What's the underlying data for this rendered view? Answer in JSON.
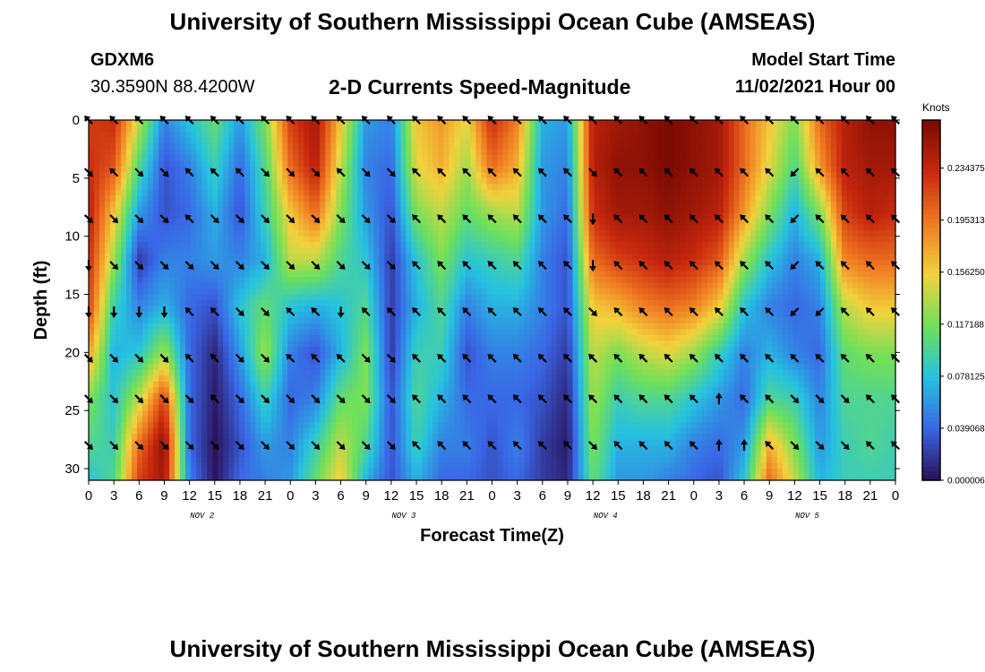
{
  "header": {
    "title": "University of Southern Mississippi Ocean Cube (AMSEAS)",
    "station": "GDXM6",
    "coords": "30.3590N  88.4200W",
    "chart_title": "2-D Currents Speed-Magnitude",
    "model_start_label": "Model Start Time",
    "model_start_value": "11/02/2021 Hour 00"
  },
  "footer": {
    "title": "University of Southern Mississippi Ocean Cube (AMSEAS)"
  },
  "colors": {
    "colormap": [
      "#2b0f57",
      "#3a66e6",
      "#26c2e0",
      "#6fe05a",
      "#f2d33d",
      "#f07a22",
      "#c8280e",
      "#7a0a03"
    ]
  },
  "chart_data": {
    "type": "heatmap",
    "title": "2-D Currents Speed-Magnitude",
    "xlabel": "Forecast Time(Z)",
    "ylabel": "Depth (ft)",
    "x_tick_labels": [
      "0",
      "3",
      "6",
      "9",
      "12",
      "15",
      "18",
      "21",
      "0",
      "3",
      "6",
      "9",
      "12",
      "15",
      "18",
      "21",
      "0",
      "3",
      "6",
      "9",
      "12",
      "15",
      "18",
      "21",
      "0",
      "3",
      "6",
      "9",
      "12",
      "15",
      "18",
      "21",
      "0"
    ],
    "x_hours": [
      0,
      96
    ],
    "day_labels": [
      {
        "label": "NOV 2",
        "hour": 13.5
      },
      {
        "label": "NOV 3",
        "hour": 37.5
      },
      {
        "label": "NOV 4",
        "hour": 61.5
      },
      {
        "label": "NOV 5",
        "hour": 85.5
      }
    ],
    "y_ticks": [
      0,
      5,
      10,
      15,
      20,
      25,
      30
    ],
    "ylim": [
      0,
      31
    ],
    "colorbar": {
      "unit": "Knots",
      "range": [
        0,
        0.27
      ],
      "ticks": [
        "0.000006",
        "0.039068",
        "0.078125",
        "0.117188",
        "0.156250",
        "0.195313",
        "0.234375"
      ],
      "tick_values": [
        0.0,
        0.039,
        0.078,
        0.117,
        0.156,
        0.195,
        0.234
      ]
    },
    "speed_grid": {
      "hours": [
        0,
        3,
        6,
        9,
        12,
        15,
        18,
        21,
        24,
        27,
        30,
        33,
        36,
        39,
        42,
        45,
        48,
        51,
        54,
        57,
        60,
        63,
        66,
        69,
        72,
        75,
        78,
        81,
        84,
        87,
        90,
        93,
        96
      ],
      "depths": [
        0,
        4,
        8,
        12,
        16,
        20,
        24,
        28,
        31
      ],
      "values": [
        [
          0.22,
          0.23,
          0.24,
          0.23,
          0.22,
          0.18,
          0.12,
          0.1,
          0.08
        ],
        [
          0.23,
          0.21,
          0.16,
          0.13,
          0.09,
          0.07,
          0.08,
          0.09,
          0.1
        ],
        [
          0.14,
          0.1,
          0.06,
          0.02,
          0.05,
          0.08,
          0.14,
          0.2,
          0.22
        ],
        [
          0.05,
          0.03,
          0.03,
          0.05,
          0.07,
          0.13,
          0.22,
          0.26,
          0.25
        ],
        [
          0.08,
          0.05,
          0.04,
          0.05,
          0.04,
          0.04,
          0.04,
          0.04,
          0.05
        ],
        [
          0.11,
          0.09,
          0.07,
          0.06,
          0.03,
          0.01,
          0.005,
          0.001,
          0.002
        ],
        [
          0.06,
          0.04,
          0.03,
          0.05,
          0.08,
          0.06,
          0.04,
          0.03,
          0.04
        ],
        [
          0.12,
          0.1,
          0.09,
          0.07,
          0.11,
          0.13,
          0.09,
          0.06,
          0.05
        ],
        [
          0.22,
          0.2,
          0.16,
          0.14,
          0.08,
          0.05,
          0.04,
          0.05,
          0.06
        ],
        [
          0.25,
          0.24,
          0.2,
          0.14,
          0.07,
          0.03,
          0.05,
          0.09,
          0.11
        ],
        [
          0.16,
          0.14,
          0.12,
          0.1,
          0.08,
          0.07,
          0.11,
          0.14,
          0.16
        ],
        [
          0.06,
          0.05,
          0.06,
          0.08,
          0.1,
          0.12,
          0.12,
          0.1,
          0.07
        ],
        [
          0.05,
          0.04,
          0.03,
          0.02,
          0.02,
          0.02,
          0.03,
          0.03,
          0.03
        ],
        [
          0.16,
          0.15,
          0.12,
          0.08,
          0.07,
          0.09,
          0.1,
          0.09,
          0.07
        ],
        [
          0.18,
          0.17,
          0.14,
          0.12,
          0.1,
          0.09,
          0.07,
          0.05,
          0.04
        ],
        [
          0.15,
          0.13,
          0.11,
          0.08,
          0.05,
          0.03,
          0.04,
          0.05,
          0.04
        ],
        [
          0.23,
          0.2,
          0.13,
          0.09,
          0.07,
          0.05,
          0.04,
          0.03,
          0.03
        ],
        [
          0.19,
          0.17,
          0.14,
          0.1,
          0.07,
          0.05,
          0.04,
          0.05,
          0.04
        ],
        [
          0.07,
          0.06,
          0.06,
          0.05,
          0.05,
          0.04,
          0.03,
          0.02,
          0.02
        ],
        [
          0.06,
          0.05,
          0.04,
          0.03,
          0.03,
          0.02,
          0.01,
          0.005,
          0.01
        ],
        [
          0.24,
          0.24,
          0.23,
          0.2,
          0.16,
          0.14,
          0.13,
          0.12,
          0.11
        ],
        [
          0.25,
          0.26,
          0.25,
          0.22,
          0.17,
          0.12,
          0.09,
          0.07,
          0.06
        ],
        [
          0.26,
          0.26,
          0.25,
          0.23,
          0.19,
          0.14,
          0.1,
          0.07,
          0.06
        ],
        [
          0.27,
          0.27,
          0.26,
          0.24,
          0.2,
          0.15,
          0.1,
          0.07,
          0.05
        ],
        [
          0.26,
          0.26,
          0.25,
          0.23,
          0.19,
          0.13,
          0.08,
          0.05,
          0.04
        ],
        [
          0.25,
          0.25,
          0.24,
          0.21,
          0.16,
          0.09,
          0.06,
          0.04,
          0.03
        ],
        [
          0.2,
          0.2,
          0.18,
          0.13,
          0.08,
          0.05,
          0.04,
          0.06,
          0.08
        ],
        [
          0.16,
          0.15,
          0.12,
          0.08,
          0.05,
          0.07,
          0.1,
          0.17,
          0.2
        ],
        [
          0.12,
          0.1,
          0.07,
          0.05,
          0.04,
          0.05,
          0.09,
          0.12,
          0.14
        ],
        [
          0.2,
          0.18,
          0.12,
          0.07,
          0.05,
          0.04,
          0.05,
          0.06,
          0.07
        ],
        [
          0.24,
          0.24,
          0.22,
          0.19,
          0.14,
          0.11,
          0.1,
          0.09,
          0.09
        ],
        [
          0.26,
          0.25,
          0.24,
          0.2,
          0.16,
          0.12,
          0.1,
          0.1,
          0.09
        ],
        [
          0.26,
          0.25,
          0.23,
          0.2,
          0.16,
          0.12,
          0.1,
          0.09,
          0.09
        ]
      ]
    },
    "arrow_field": {
      "hours": [
        0,
        3,
        6,
        9,
        12,
        15,
        18,
        21,
        24,
        27,
        30,
        33,
        36,
        39,
        42,
        45,
        48,
        51,
        54,
        57,
        60,
        63,
        66,
        69,
        72,
        75,
        78,
        81,
        84,
        87,
        90,
        93,
        96
      ],
      "depths": [
        0,
        4.5,
        8.5,
        12.5,
        16.5,
        20.5,
        24,
        28
      ],
      "direction_deg_by_depth": [
        [
          225,
          225,
          225,
          225,
          225,
          225,
          225,
          225,
          225,
          225,
          225,
          225,
          225,
          225,
          225,
          225,
          225,
          225,
          225,
          225,
          225,
          225,
          225,
          225,
          225,
          225,
          225,
          225,
          225,
          225,
          225,
          225,
          225
        ],
        [
          45,
          225,
          45,
          45,
          225,
          225,
          225,
          45,
          45,
          45,
          225,
          45,
          45,
          225,
          225,
          225,
          225,
          225,
          225,
          225,
          45,
          225,
          225,
          225,
          225,
          225,
          225,
          225,
          135,
          225,
          225,
          225,
          225
        ],
        [
          45,
          45,
          45,
          45,
          225,
          45,
          45,
          45,
          45,
          45,
          45,
          45,
          45,
          225,
          225,
          225,
          225,
          225,
          225,
          225,
          90,
          225,
          225,
          225,
          225,
          225,
          225,
          225,
          135,
          225,
          225,
          225,
          225
        ],
        [
          90,
          45,
          45,
          45,
          45,
          45,
          45,
          45,
          45,
          45,
          45,
          45,
          45,
          225,
          225,
          225,
          225,
          225,
          225,
          225,
          90,
          225,
          225,
          225,
          225,
          225,
          225,
          225,
          135,
          225,
          225,
          225,
          225
        ],
        [
          90,
          90,
          90,
          90,
          225,
          225,
          45,
          45,
          225,
          225,
          90,
          225,
          225,
          225,
          225,
          225,
          225,
          225,
          225,
          225,
          45,
          225,
          225,
          225,
          225,
          225,
          225,
          225,
          135,
          135,
          225,
          225,
          225
        ],
        [
          45,
          45,
          45,
          45,
          225,
          225,
          45,
          45,
          225,
          225,
          225,
          45,
          45,
          225,
          225,
          225,
          225,
          225,
          225,
          225,
          225,
          225,
          225,
          225,
          225,
          225,
          225,
          225,
          225,
          225,
          225,
          225,
          225
        ],
        [
          45,
          45,
          45,
          45,
          45,
          225,
          45,
          45,
          45,
          45,
          45,
          45,
          45,
          225,
          225,
          225,
          225,
          225,
          225,
          225,
          225,
          225,
          225,
          225,
          225,
          270,
          225,
          225,
          45,
          45,
          45,
          225,
          225
        ],
        [
          45,
          45,
          45,
          45,
          45,
          45,
          45,
          45,
          45,
          45,
          45,
          45,
          45,
          225,
          225,
          225,
          225,
          225,
          225,
          225,
          45,
          225,
          225,
          225,
          225,
          270,
          270,
          225,
          45,
          45,
          45,
          225,
          225
        ]
      ]
    }
  }
}
